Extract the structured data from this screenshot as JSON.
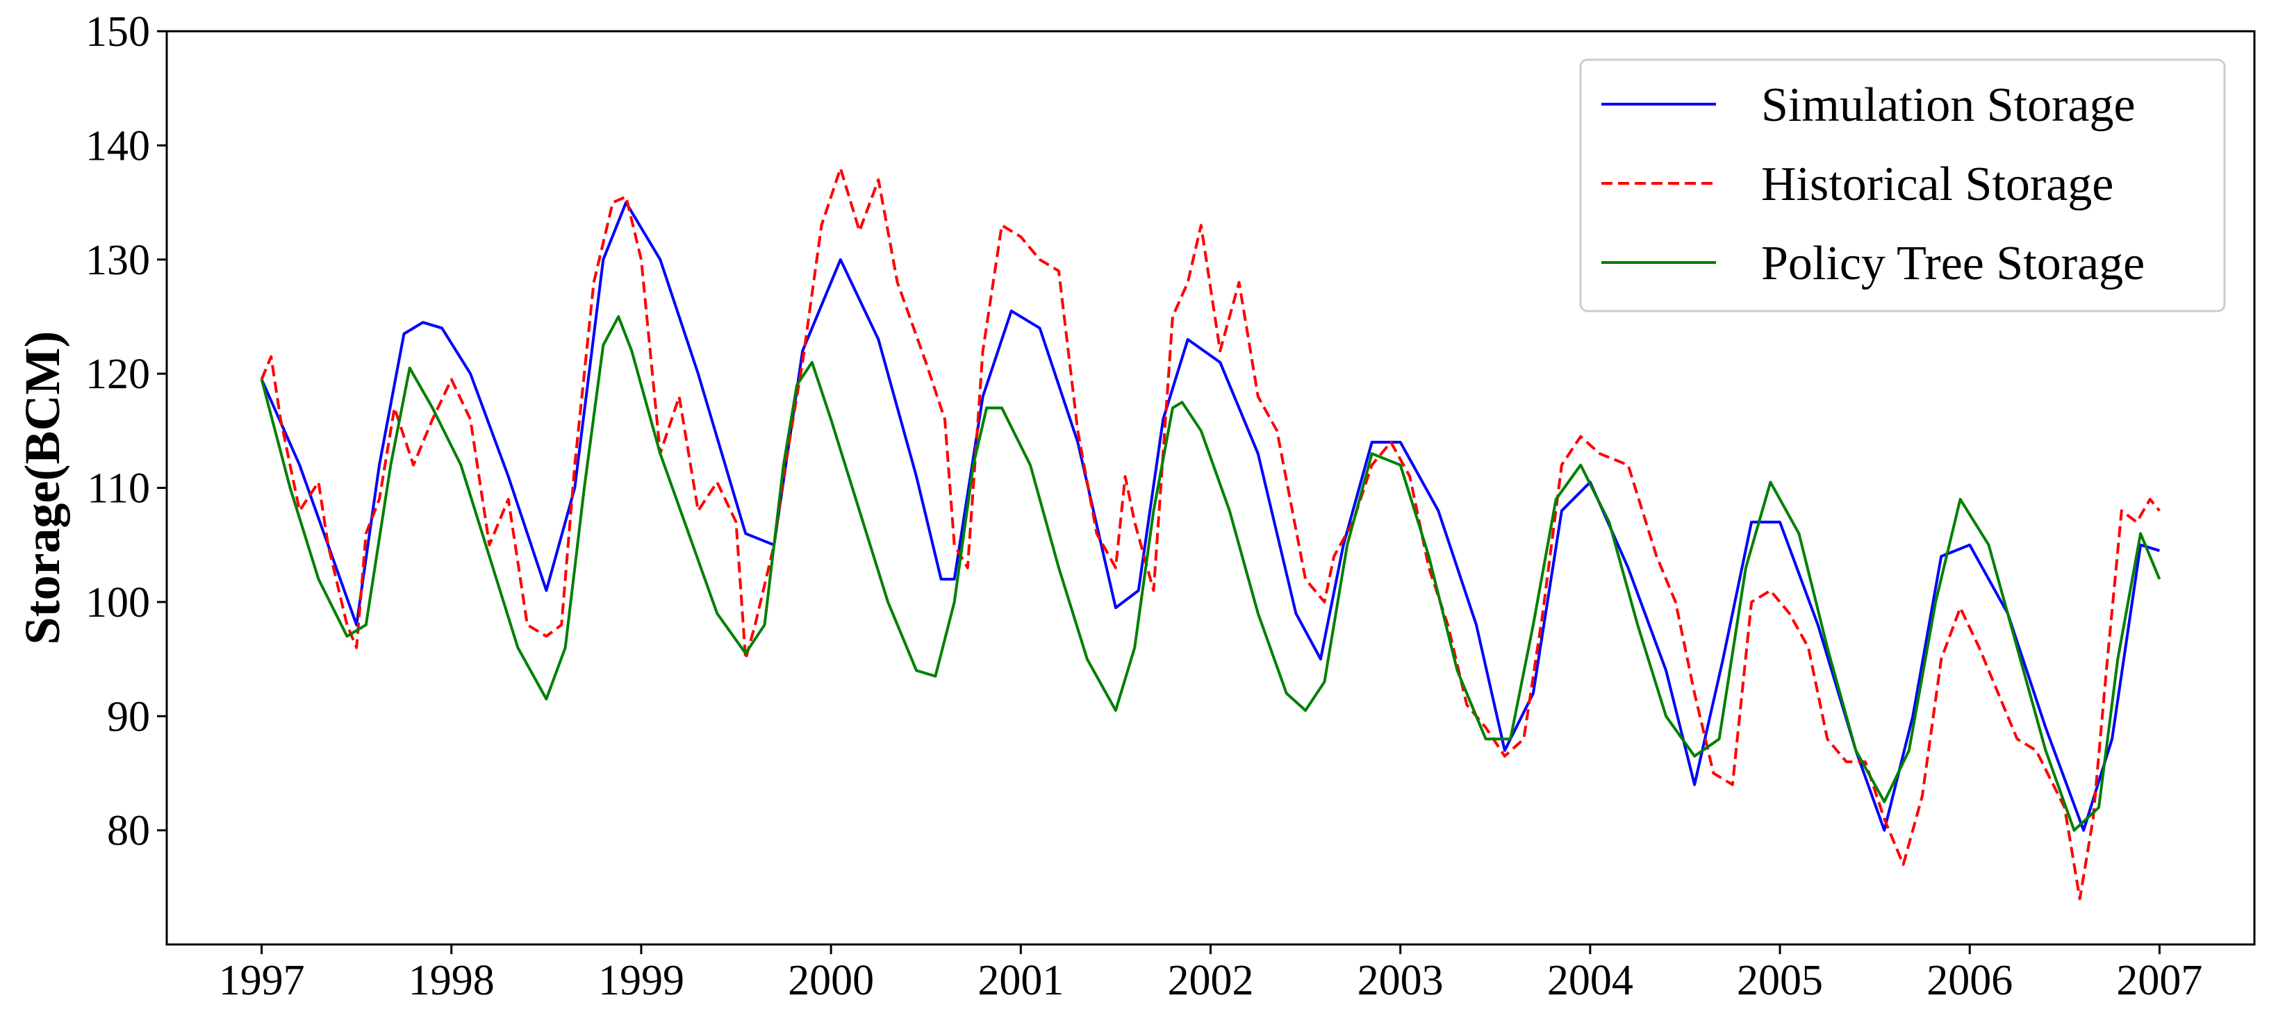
{
  "chart_data": {
    "type": "line",
    "title": "",
    "xlabel": "",
    "ylabel": "Storage(BCM)",
    "xlim": [
      1996.5,
      2007.5
    ],
    "ylim": [
      70,
      150
    ],
    "xticks": [
      1997,
      1998,
      1999,
      2000,
      2001,
      2002,
      2003,
      2004,
      2005,
      2006,
      2007
    ],
    "yticks": [
      80,
      90,
      100,
      110,
      120,
      130,
      140,
      150
    ],
    "grid": false,
    "legend_position": "top-right",
    "series": [
      {
        "name": "Simulation Storage",
        "color": "#0000ff",
        "dash": "solid",
        "x": [
          1997.0,
          1997.2,
          1997.35,
          1997.5,
          1997.62,
          1997.75,
          1997.85,
          1997.95,
          1998.1,
          1998.3,
          1998.5,
          1998.65,
          1998.8,
          1998.92,
          1999.1,
          1999.3,
          1999.55,
          1999.7,
          1999.85,
          2000.05,
          2000.25,
          2000.45,
          2000.58,
          2000.65,
          2000.8,
          2000.95,
          2001.1,
          2001.3,
          2001.5,
          2001.62,
          2001.75,
          2001.88,
          2002.05,
          2002.25,
          2002.45,
          2002.58,
          2002.7,
          2002.85,
          2003.0,
          2003.2,
          2003.4,
          2003.55,
          2003.7,
          2003.85,
          2004.0,
          2004.2,
          2004.4,
          2004.55,
          2004.7,
          2004.85,
          2005.0,
          2005.2,
          2005.4,
          2005.55,
          2005.7,
          2005.85,
          2006.0,
          2006.2,
          2006.4,
          2006.6,
          2006.75,
          2006.9,
          2007.0
        ],
        "values": [
          119.5,
          112,
          105,
          98,
          112,
          123.5,
          124.5,
          124,
          120,
          111,
          101,
          110,
          130,
          135,
          130,
          120,
          106,
          105,
          122,
          130,
          123,
          111,
          102,
          102,
          118,
          125.5,
          124,
          114,
          99.5,
          101,
          116,
          123,
          121,
          113,
          99,
          95,
          105,
          114,
          114,
          108,
          98,
          87,
          92,
          108,
          110.5,
          103,
          94,
          84,
          95,
          107,
          107,
          98,
          87,
          80,
          90,
          104,
          105,
          99,
          89,
          80,
          88,
          105,
          104.5
        ]
      },
      {
        "name": "Historical Storage",
        "color": "#ff0000",
        "dash": "dashed",
        "x": [
          1997.0,
          1997.05,
          1997.1,
          1997.2,
          1997.3,
          1997.35,
          1997.45,
          1997.5,
          1997.55,
          1997.62,
          1997.7,
          1997.8,
          1997.9,
          1998.0,
          1998.1,
          1998.2,
          1998.3,
          1998.4,
          1998.5,
          1998.58,
          1998.65,
          1998.75,
          1998.85,
          1998.92,
          1999.0,
          1999.1,
          1999.2,
          1999.3,
          1999.4,
          1999.5,
          1999.55,
          1999.6,
          1999.7,
          1999.75,
          1999.85,
          1999.95,
          2000.05,
          2000.15,
          2000.25,
          2000.35,
          2000.5,
          2000.6,
          2000.65,
          2000.72,
          2000.8,
          2000.9,
          2001.0,
          2001.1,
          2001.2,
          2001.3,
          2001.4,
          2001.5,
          2001.55,
          2001.6,
          2001.7,
          2001.8,
          2001.88,
          2001.95,
          2002.05,
          2002.15,
          2002.25,
          2002.35,
          2002.5,
          2002.6,
          2002.65,
          2002.75,
          2002.85,
          2002.95,
          2003.05,
          2003.15,
          2003.25,
          2003.35,
          2003.45,
          2003.55,
          2003.65,
          2003.75,
          2003.85,
          2003.95,
          2004.05,
          2004.2,
          2004.35,
          2004.45,
          2004.55,
          2004.65,
          2004.75,
          2004.85,
          2004.95,
          2005.05,
          2005.15,
          2005.25,
          2005.35,
          2005.45,
          2005.55,
          2005.65,
          2005.75,
          2005.85,
          2005.95,
          2006.05,
          2006.15,
          2006.25,
          2006.35,
          2006.5,
          2006.58,
          2006.65,
          2006.72,
          2006.8,
          2006.88,
          2006.95,
          2007.0
        ],
        "values": [
          119.5,
          121.5,
          116,
          108,
          110.5,
          105,
          98,
          96,
          106,
          109,
          117,
          112,
          116,
          119.5,
          116,
          105,
          109,
          98,
          97,
          98,
          112,
          128,
          135,
          135.5,
          130,
          113,
          118,
          108,
          110.5,
          107,
          95,
          98,
          105,
          111,
          121,
          133,
          138,
          132.5,
          137,
          128,
          121,
          116,
          105,
          103,
          122,
          133,
          132,
          130,
          129,
          115,
          106,
          103,
          111,
          107,
          101,
          125,
          128,
          133,
          122,
          128,
          118,
          115,
          102,
          100,
          104,
          107,
          112,
          114,
          111,
          103,
          98,
          91,
          89,
          86.5,
          88,
          99,
          112,
          114.5,
          113,
          112,
          104,
          100,
          92,
          85,
          84,
          100,
          101,
          99,
          96,
          88,
          86,
          86,
          81,
          77,
          83,
          95,
          99.5,
          96,
          92,
          88,
          87,
          82,
          74,
          81,
          94,
          108,
          107,
          109,
          108
        ]
      },
      {
        "name": "Policy Tree Storage",
        "color": "#008000",
        "dash": "solid",
        "x": [
          1997.0,
          1997.15,
          1997.3,
          1997.45,
          1997.55,
          1997.68,
          1997.78,
          1997.9,
          1998.05,
          1998.2,
          1998.35,
          1998.5,
          1998.6,
          1998.7,
          1998.8,
          1998.88,
          1998.95,
          1999.1,
          1999.25,
          1999.4,
          1999.55,
          1999.65,
          1999.75,
          1999.82,
          1999.9,
          2000.0,
          2000.15,
          2000.3,
          2000.45,
          2000.55,
          2000.65,
          2000.75,
          2000.82,
          2000.9,
          2001.05,
          2001.2,
          2001.35,
          2001.5,
          2001.6,
          2001.7,
          2001.8,
          2001.85,
          2001.95,
          2002.1,
          2002.25,
          2002.4,
          2002.5,
          2002.6,
          2002.72,
          2002.85,
          2003.0,
          2003.15,
          2003.3,
          2003.45,
          2003.58,
          2003.7,
          2003.82,
          2003.95,
          2004.1,
          2004.25,
          2004.4,
          2004.55,
          2004.68,
          2004.82,
          2004.95,
          2005.1,
          2005.25,
          2005.4,
          2005.55,
          2005.68,
          2005.82,
          2005.95,
          2006.1,
          2006.25,
          2006.4,
          2006.55,
          2006.68,
          2006.78,
          2006.9,
          2007.0
        ],
        "values": [
          119.5,
          110,
          102,
          97,
          98,
          112,
          120.5,
          117,
          112,
          104,
          96,
          91.5,
          96,
          110,
          122.5,
          125,
          122,
          113,
          106,
          99,
          95.5,
          98,
          112,
          119,
          121,
          116,
          108,
          100,
          94,
          93.5,
          100,
          112,
          117,
          117,
          112,
          103,
          95,
          90.5,
          96,
          108,
          117,
          117.5,
          115,
          108,
          99,
          92,
          90.5,
          93,
          105,
          113,
          112,
          104,
          94,
          88,
          88,
          98,
          109,
          112,
          107,
          98,
          90,
          86.5,
          88,
          103,
          110.5,
          106,
          96,
          87,
          82.5,
          87,
          100,
          109,
          105,
          96,
          87,
          80,
          82,
          95,
          106,
          102
        ]
      }
    ]
  }
}
